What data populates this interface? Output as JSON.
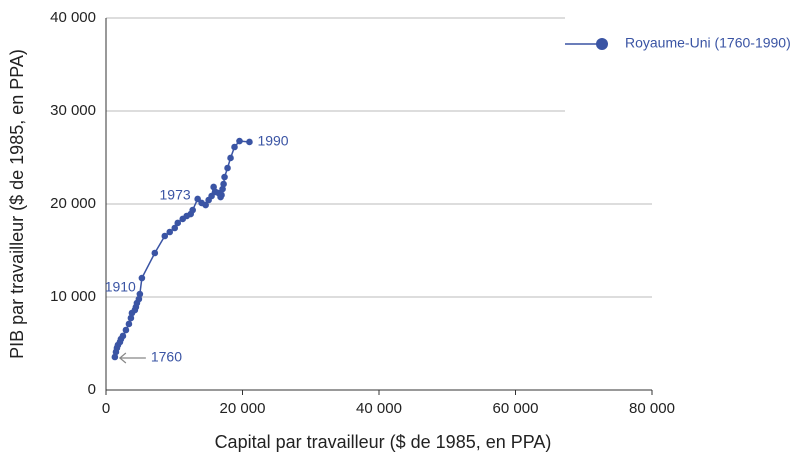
{
  "chart_data": {
    "type": "line",
    "x_label": "Capital par travailleur ($ de 1985, en PPA)",
    "y_label": "PIB par travailleur ($ de 1985, en PPA)",
    "xlim": [
      0,
      80000
    ],
    "ylim": [
      0,
      40000
    ],
    "xticks": [
      0,
      {
        "value": 20000,
        "label": "20 000"
      },
      {
        "value": 40000,
        "label": "40 000"
      },
      {
        "value": 60000,
        "label": "60 000"
      },
      {
        "value": 80000,
        "label": "80 000"
      }
    ],
    "yticks": [
      0,
      {
        "value": 10000,
        "label": "10 000"
      },
      {
        "value": 20000,
        "label": "20 000"
      },
      {
        "value": 30000,
        "label": "30 000"
      },
      {
        "value": 40000,
        "label": "40 000"
      }
    ],
    "grid": true,
    "legend": "top-right",
    "annotations": [
      "1760",
      "1910",
      "1973",
      "1990"
    ],
    "series": [
      {
        "name": "Royaume-Uni (1760-1990)",
        "color": "#3a54a4",
        "x": [
          1300,
          1460,
          1600,
          1750,
          2040,
          2190,
          2480,
          2920,
          3360,
          3650,
          3800,
          4230,
          4380,
          4530,
          4820,
          4960,
          5260,
          7150,
          8610,
          9340,
          10070,
          10510,
          11240,
          11820,
          12410,
          12700,
          13430,
          14010,
          14600,
          15040,
          15470,
          15770,
          16060,
          16500,
          16790,
          16930,
          17080,
          17230,
          17370,
          17810,
          18250,
          18830,
          19560,
          21020
        ],
        "values": [
          3550,
          4090,
          4520,
          4840,
          5160,
          5480,
          5810,
          6450,
          7100,
          7740,
          8280,
          8600,
          8920,
          9350,
          9780,
          10320,
          12040,
          14730,
          16560,
          16990,
          17420,
          17960,
          18390,
          18710,
          18920,
          19350,
          20540,
          20110,
          19890,
          20430,
          20860,
          21830,
          21290,
          21180,
          20750,
          20970,
          21610,
          22150,
          22900,
          23870,
          24950,
          26130,
          26770,
          26670
        ]
      }
    ]
  }
}
